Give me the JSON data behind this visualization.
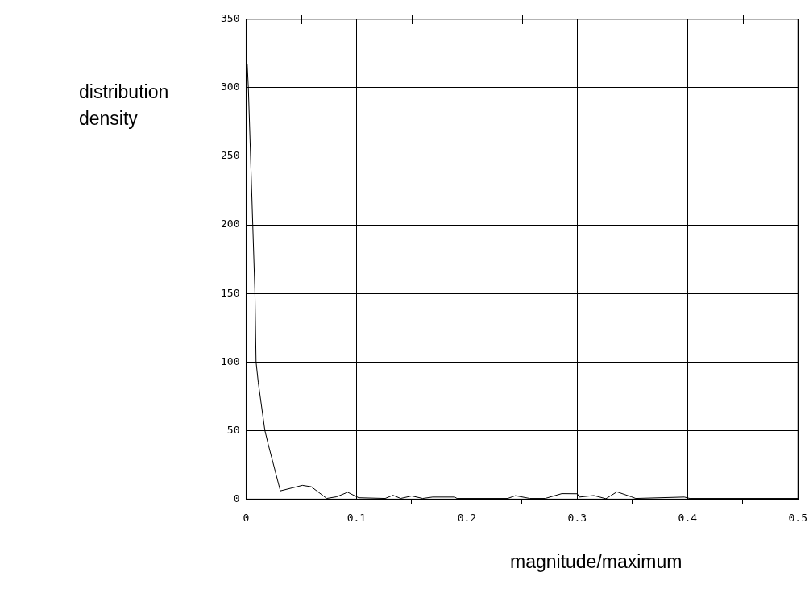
{
  "chart_data": {
    "type": "line",
    "xlabel": "magnitude/maximum",
    "ylabel": "distribution density",
    "x": [
      0.001,
      0.002,
      0.006,
      0.008,
      0.009,
      0.011,
      0.017,
      0.02,
      0.031,
      0.051,
      0.059,
      0.073,
      0.082,
      0.092,
      0.102,
      0.126,
      0.133,
      0.14,
      0.15,
      0.16,
      0.169,
      0.189,
      0.191,
      0.237,
      0.244,
      0.257,
      0.271,
      0.286,
      0.3,
      0.302,
      0.315,
      0.326,
      0.336,
      0.349,
      0.353,
      0.397,
      0.402,
      0.5
    ],
    "series": [
      {
        "color": "#000000",
        "values": [
          317,
          300,
          200,
          150,
          100,
          85,
          50,
          40,
          6,
          10,
          9,
          0.5,
          1.7,
          5,
          1,
          0.5,
          2.8,
          0.5,
          2.3,
          0.5,
          1.5,
          1.5,
          0.5,
          0.5,
          2.5,
          0.5,
          0.5,
          4,
          3.9,
          1.5,
          2.6,
          0.3,
          5.3,
          1.7,
          0.5,
          1.5,
          0.5,
          0.5
        ]
      }
    ],
    "xlim": [
      0,
      0.5
    ],
    "ylim": [
      0,
      350
    ],
    "xticks": [
      0,
      {
        "value": 0.05,
        "label": null
      },
      0.1,
      {
        "value": 0.15,
        "label": null
      },
      0.2,
      {
        "value": 0.25,
        "label": null
      },
      0.3,
      {
        "value": 0.35,
        "label": null
      },
      0.4,
      {
        "value": 0.45,
        "label": null
      },
      0.5
    ],
    "yticks": [
      0,
      50,
      100,
      150,
      200,
      250,
      300,
      350
    ],
    "grid": true,
    "legend": false,
    "marker": "none",
    "line_style": "solid"
  }
}
